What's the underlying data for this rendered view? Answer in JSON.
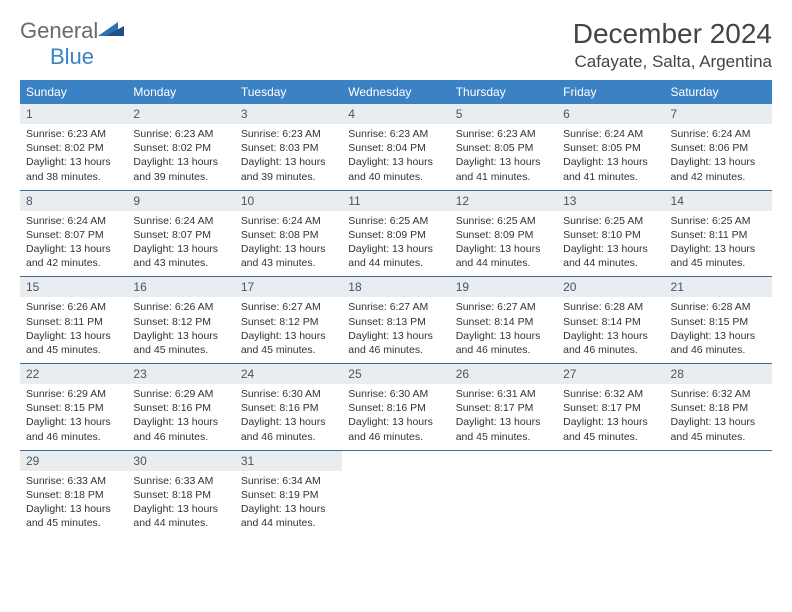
{
  "logo": {
    "word1": "General",
    "word2": "Blue"
  },
  "title": "December 2024",
  "location": "Cafayate, Salta, Argentina",
  "dayHeaders": [
    "Sunday",
    "Monday",
    "Tuesday",
    "Wednesday",
    "Thursday",
    "Friday",
    "Saturday"
  ],
  "colors": {
    "headerBg": "#3b82c4",
    "headerText": "#ffffff",
    "dayNumBg": "#e9edf0",
    "rowDivider": "#3b6ea0",
    "logoGray": "#6a6a6a",
    "logoBlue": "#3b82c4"
  },
  "weeks": [
    [
      {
        "n": "1",
        "sunrise": "6:23 AM",
        "sunset": "8:02 PM",
        "daylight": "13 hours and 38 minutes."
      },
      {
        "n": "2",
        "sunrise": "6:23 AM",
        "sunset": "8:02 PM",
        "daylight": "13 hours and 39 minutes."
      },
      {
        "n": "3",
        "sunrise": "6:23 AM",
        "sunset": "8:03 PM",
        "daylight": "13 hours and 39 minutes."
      },
      {
        "n": "4",
        "sunrise": "6:23 AM",
        "sunset": "8:04 PM",
        "daylight": "13 hours and 40 minutes."
      },
      {
        "n": "5",
        "sunrise": "6:23 AM",
        "sunset": "8:05 PM",
        "daylight": "13 hours and 41 minutes."
      },
      {
        "n": "6",
        "sunrise": "6:24 AM",
        "sunset": "8:05 PM",
        "daylight": "13 hours and 41 minutes."
      },
      {
        "n": "7",
        "sunrise": "6:24 AM",
        "sunset": "8:06 PM",
        "daylight": "13 hours and 42 minutes."
      }
    ],
    [
      {
        "n": "8",
        "sunrise": "6:24 AM",
        "sunset": "8:07 PM",
        "daylight": "13 hours and 42 minutes."
      },
      {
        "n": "9",
        "sunrise": "6:24 AM",
        "sunset": "8:07 PM",
        "daylight": "13 hours and 43 minutes."
      },
      {
        "n": "10",
        "sunrise": "6:24 AM",
        "sunset": "8:08 PM",
        "daylight": "13 hours and 43 minutes."
      },
      {
        "n": "11",
        "sunrise": "6:25 AM",
        "sunset": "8:09 PM",
        "daylight": "13 hours and 44 minutes."
      },
      {
        "n": "12",
        "sunrise": "6:25 AM",
        "sunset": "8:09 PM",
        "daylight": "13 hours and 44 minutes."
      },
      {
        "n": "13",
        "sunrise": "6:25 AM",
        "sunset": "8:10 PM",
        "daylight": "13 hours and 44 minutes."
      },
      {
        "n": "14",
        "sunrise": "6:25 AM",
        "sunset": "8:11 PM",
        "daylight": "13 hours and 45 minutes."
      }
    ],
    [
      {
        "n": "15",
        "sunrise": "6:26 AM",
        "sunset": "8:11 PM",
        "daylight": "13 hours and 45 minutes."
      },
      {
        "n": "16",
        "sunrise": "6:26 AM",
        "sunset": "8:12 PM",
        "daylight": "13 hours and 45 minutes."
      },
      {
        "n": "17",
        "sunrise": "6:27 AM",
        "sunset": "8:12 PM",
        "daylight": "13 hours and 45 minutes."
      },
      {
        "n": "18",
        "sunrise": "6:27 AM",
        "sunset": "8:13 PM",
        "daylight": "13 hours and 46 minutes."
      },
      {
        "n": "19",
        "sunrise": "6:27 AM",
        "sunset": "8:14 PM",
        "daylight": "13 hours and 46 minutes."
      },
      {
        "n": "20",
        "sunrise": "6:28 AM",
        "sunset": "8:14 PM",
        "daylight": "13 hours and 46 minutes."
      },
      {
        "n": "21",
        "sunrise": "6:28 AM",
        "sunset": "8:15 PM",
        "daylight": "13 hours and 46 minutes."
      }
    ],
    [
      {
        "n": "22",
        "sunrise": "6:29 AM",
        "sunset": "8:15 PM",
        "daylight": "13 hours and 46 minutes."
      },
      {
        "n": "23",
        "sunrise": "6:29 AM",
        "sunset": "8:16 PM",
        "daylight": "13 hours and 46 minutes."
      },
      {
        "n": "24",
        "sunrise": "6:30 AM",
        "sunset": "8:16 PM",
        "daylight": "13 hours and 46 minutes."
      },
      {
        "n": "25",
        "sunrise": "6:30 AM",
        "sunset": "8:16 PM",
        "daylight": "13 hours and 46 minutes."
      },
      {
        "n": "26",
        "sunrise": "6:31 AM",
        "sunset": "8:17 PM",
        "daylight": "13 hours and 45 minutes."
      },
      {
        "n": "27",
        "sunrise": "6:32 AM",
        "sunset": "8:17 PM",
        "daylight": "13 hours and 45 minutes."
      },
      {
        "n": "28",
        "sunrise": "6:32 AM",
        "sunset": "8:18 PM",
        "daylight": "13 hours and 45 minutes."
      }
    ],
    [
      {
        "n": "29",
        "sunrise": "6:33 AM",
        "sunset": "8:18 PM",
        "daylight": "13 hours and 45 minutes."
      },
      {
        "n": "30",
        "sunrise": "6:33 AM",
        "sunset": "8:18 PM",
        "daylight": "13 hours and 44 minutes."
      },
      {
        "n": "31",
        "sunrise": "6:34 AM",
        "sunset": "8:19 PM",
        "daylight": "13 hours and 44 minutes."
      },
      null,
      null,
      null,
      null
    ]
  ],
  "labels": {
    "sunrise": "Sunrise:",
    "sunset": "Sunset:",
    "daylight": "Daylight:"
  }
}
